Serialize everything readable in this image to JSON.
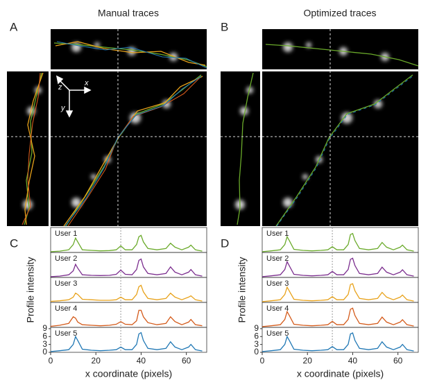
{
  "panels": {
    "labels": [
      "A",
      "B",
      "C",
      "D"
    ],
    "titles": [
      "Manual traces",
      "Optimized traces"
    ],
    "inset_axes": [
      "z",
      "x",
      "y"
    ]
  },
  "chart_data": [
    {
      "type": "line",
      "xlabel": "x coordinate (pixels)",
      "ylabel": "Profile intensity",
      "xlim": [
        0,
        69
      ],
      "xticks": [
        0,
        20,
        40,
        60
      ],
      "ylim": [
        0,
        9.5
      ],
      "yticks": [
        0,
        3,
        6,
        9
      ],
      "reference_line_x": 31,
      "x": [
        0,
        4,
        8,
        10,
        11,
        12,
        14,
        18,
        22,
        26,
        29,
        31,
        33,
        36,
        38,
        39,
        40,
        41,
        43,
        47,
        51,
        53,
        55,
        58,
        61,
        62,
        64,
        67
      ],
      "series": [
        {
          "name": "User 1",
          "color": "#6aaa2a",
          "values": [
            0.3,
            0.5,
            1,
            3,
            5.5,
            4,
            1,
            0.8,
            0.6,
            0.7,
            1,
            2.5,
            1,
            1,
            3,
            6,
            6.5,
            4,
            1.5,
            1,
            1.5,
            3.5,
            2,
            1,
            2,
            2.8,
            1,
            0.5
          ]
        },
        {
          "name": "User 2",
          "color": "#7b2d8e",
          "values": [
            0.3,
            0.5,
            1,
            2.5,
            5,
            3.5,
            1,
            0.8,
            0.7,
            0.8,
            1.2,
            2.8,
            1.2,
            1,
            3,
            6.5,
            7,
            4,
            1.5,
            1,
            1.5,
            4,
            2,
            1,
            2,
            3,
            1,
            0.5
          ]
        },
        {
          "name": "User 3",
          "color": "#e8a21a",
          "values": [
            0.4,
            0.6,
            1,
            2,
            3.5,
            3,
            1.2,
            1,
            0.8,
            0.8,
            1,
            2,
            1,
            1,
            3,
            6,
            6.5,
            4,
            1.5,
            1,
            1.5,
            3.5,
            2,
            1,
            2,
            2.5,
            1,
            0.5
          ]
        },
        {
          "name": "User 4",
          "color": "#d45a1a",
          "values": [
            0.4,
            0.8,
            1.5,
            4,
            3.5,
            2,
            1,
            0.8,
            0.6,
            0.8,
            1.2,
            2.2,
            1.2,
            1,
            2.5,
            6.5,
            6.5,
            4,
            1.8,
            1,
            1.5,
            4,
            2.2,
            1,
            2,
            3,
            1,
            0.6
          ]
        },
        {
          "name": "User 5",
          "color": "#1f77b4",
          "values": [
            0.3,
            0.6,
            1,
            3,
            6,
            4.5,
            1.2,
            0.8,
            0.6,
            0.8,
            1,
            2,
            1,
            1,
            3,
            7,
            7.5,
            4.5,
            1.5,
            1,
            1.5,
            4,
            2,
            1,
            2,
            3,
            1,
            0.5
          ]
        }
      ]
    },
    {
      "type": "line",
      "xlabel": "x coordinate (pixels)",
      "ylabel": "Profile intensity",
      "xlim": [
        0,
        69
      ],
      "xticks": [
        0,
        20,
        40,
        60
      ],
      "ylim": [
        0,
        9.5
      ],
      "yticks": [
        0,
        3,
        6,
        9
      ],
      "reference_line_x": 31,
      "x": [
        0,
        4,
        8,
        10,
        11,
        12,
        14,
        18,
        22,
        26,
        29,
        31,
        33,
        36,
        38,
        39,
        40,
        41,
        43,
        47,
        51,
        53,
        55,
        58,
        61,
        62,
        64,
        67
      ],
      "series": [
        {
          "name": "User 1",
          "color": "#6aaa2a",
          "values": [
            0.3,
            0.6,
            1,
            3,
            6,
            4.5,
            1.2,
            0.8,
            0.6,
            0.8,
            1,
            2.2,
            1,
            1,
            3,
            6.8,
            7.2,
            4.5,
            1.5,
            1,
            1.5,
            3.8,
            2,
            1,
            2,
            2.8,
            1,
            0.5
          ]
        },
        {
          "name": "User 2",
          "color": "#7b2d8e",
          "values": [
            0.3,
            0.6,
            1,
            3,
            6,
            4.4,
            1.2,
            0.8,
            0.6,
            0.8,
            1,
            2.3,
            1,
            1,
            3,
            6.9,
            7.3,
            4.5,
            1.5,
            1,
            1.5,
            3.9,
            2,
            1,
            2,
            2.9,
            1,
            0.5
          ]
        },
        {
          "name": "User 3",
          "color": "#e8a21a",
          "values": [
            0.3,
            0.6,
            1,
            3,
            5.8,
            4.3,
            1.2,
            0.8,
            0.6,
            0.8,
            1,
            2.2,
            1,
            1,
            3,
            6.8,
            7.1,
            4.4,
            1.5,
            1,
            1.5,
            3.8,
            2,
            1,
            2,
            2.8,
            1,
            0.5
          ]
        },
        {
          "name": "User 4",
          "color": "#d45a1a",
          "values": [
            0.3,
            0.6,
            1,
            3,
            6,
            4.5,
            1.2,
            0.8,
            0.6,
            0.8,
            1,
            2.3,
            1,
            1,
            3,
            6.9,
            7.3,
            4.5,
            1.5,
            1,
            1.5,
            3.9,
            2,
            1,
            2,
            2.9,
            1,
            0.5
          ]
        },
        {
          "name": "User 5",
          "color": "#1f77b4",
          "values": [
            0.3,
            0.6,
            1,
            3,
            6,
            4.5,
            1.2,
            0.8,
            0.6,
            0.8,
            1,
            2.2,
            1,
            1,
            3,
            7,
            7.4,
            4.5,
            1.5,
            1,
            1.5,
            4,
            2,
            1,
            2,
            3,
            1,
            0.5
          ]
        }
      ]
    }
  ]
}
